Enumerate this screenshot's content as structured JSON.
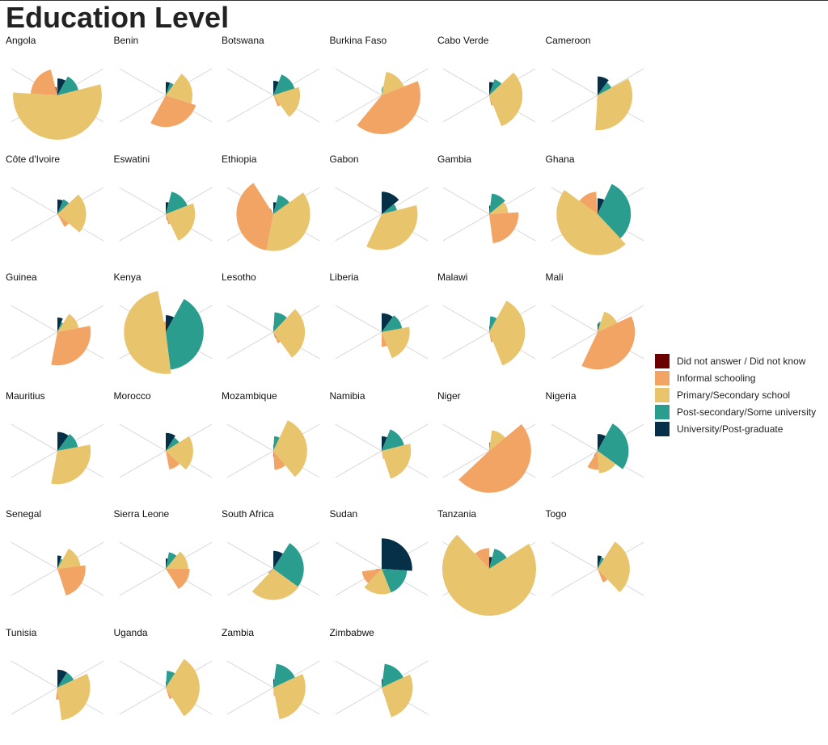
{
  "chart_data": {
    "type": "pie",
    "title": "Education Level",
    "categories": [
      "Did not answer / Did not know",
      "Informal schooling",
      "Primary/Secondary school",
      "Post-secondary/Some university",
      "University/Post-graduate"
    ],
    "colors": [
      "#6b0000",
      "#f2a465",
      "#e8c56d",
      "#2a9d8f",
      "#063047"
    ],
    "legend_position": "right",
    "panels": [
      {
        "country": "Angola",
        "values": [
          0.02,
          0.2,
          0.55,
          0.13,
          0.08
        ]
      },
      {
        "country": "Benin",
        "values": [
          0.0,
          0.28,
          0.2,
          0.05,
          0.05
        ]
      },
      {
        "country": "Botswana",
        "values": [
          0.0,
          0.04,
          0.2,
          0.14,
          0.06
        ]
      },
      {
        "country": "Burkina Faso",
        "values": [
          0.0,
          0.42,
          0.16,
          0.02,
          0.01
        ]
      },
      {
        "country": "Cabo Verde",
        "values": [
          0.0,
          0.03,
          0.31,
          0.08,
          0.05
        ]
      },
      {
        "country": "Cameroon",
        "values": [
          0.0,
          0.01,
          0.34,
          0.07,
          0.1
        ]
      },
      {
        "country": "Côte d'Ivoire",
        "values": [
          0.0,
          0.06,
          0.23,
          0.07,
          0.06
        ]
      },
      {
        "country": "Eswatini",
        "values": [
          0.01,
          0.03,
          0.24,
          0.15,
          0.04
        ]
      },
      {
        "country": "Ethiopia",
        "values": [
          0.01,
          0.38,
          0.38,
          0.11,
          0.04
        ]
      },
      {
        "country": "Gabon",
        "values": [
          0.0,
          0.0,
          0.36,
          0.07,
          0.14
        ]
      },
      {
        "country": "Gambia",
        "values": [
          0.0,
          0.24,
          0.1,
          0.12,
          0.02
        ]
      },
      {
        "country": "Ghana",
        "values": [
          0.0,
          0.14,
          0.47,
          0.31,
          0.07
        ]
      },
      {
        "country": "Guinea",
        "values": [
          0.0,
          0.31,
          0.13,
          0.03,
          0.06
        ]
      },
      {
        "country": "Kenya",
        "values": [
          0.0,
          0.03,
          0.49,
          0.4,
          0.08
        ]
      },
      {
        "country": "Lesotho",
        "values": [
          0.01,
          0.04,
          0.28,
          0.11,
          0.01
        ]
      },
      {
        "country": "Liberia",
        "values": [
          0.0,
          0.06,
          0.22,
          0.12,
          0.1
        ]
      },
      {
        "country": "Malawi",
        "values": [
          0.0,
          0.03,
          0.36,
          0.07,
          0.01
        ]
      },
      {
        "country": "Mali",
        "values": [
          0.0,
          0.39,
          0.13,
          0.03,
          0.02
        ]
      },
      {
        "country": "Mauritius",
        "values": [
          0.0,
          0.01,
          0.31,
          0.12,
          0.1
        ]
      },
      {
        "country": "Morocco",
        "values": [
          0.0,
          0.1,
          0.21,
          0.07,
          0.09
        ]
      },
      {
        "country": "Mozambique",
        "values": [
          0.01,
          0.1,
          0.32,
          0.06,
          0.01
        ]
      },
      {
        "country": "Namibia",
        "values": [
          0.0,
          0.02,
          0.24,
          0.15,
          0.06
        ]
      },
      {
        "country": "Niger",
        "values": [
          0.0,
          0.49,
          0.12,
          0.02,
          0.0
        ]
      },
      {
        "country": "Nigeria",
        "values": [
          0.01,
          0.1,
          0.14,
          0.27,
          0.08
        ]
      },
      {
        "country": "Senegal",
        "values": [
          0.0,
          0.22,
          0.15,
          0.03,
          0.05
        ]
      },
      {
        "country": "Sierra Leone",
        "values": [
          0.0,
          0.16,
          0.14,
          0.08,
          0.03
        ]
      },
      {
        "country": "South Africa",
        "values": [
          0.01,
          0.01,
          0.27,
          0.26,
          0.09
        ]
      },
      {
        "country": "Sudan",
        "values": [
          0.01,
          0.11,
          0.18,
          0.18,
          0.26
        ]
      },
      {
        "country": "Tanzania",
        "values": [
          0.0,
          0.12,
          0.72,
          0.12,
          0.04
        ]
      },
      {
        "country": "Togo",
        "values": [
          0.0,
          0.06,
          0.29,
          0.04,
          0.05
        ]
      },
      {
        "country": "Tunisia",
        "values": [
          0.0,
          0.04,
          0.3,
          0.09,
          0.09
        ]
      },
      {
        "country": "Uganda",
        "values": [
          0.0,
          0.04,
          0.32,
          0.08,
          0.01
        ]
      },
      {
        "country": "Zambia",
        "values": [
          0.0,
          0.02,
          0.29,
          0.16,
          0.02
        ]
      },
      {
        "country": "Zimbabwe",
        "values": [
          0.0,
          0.01,
          0.27,
          0.16,
          0.02
        ]
      }
    ]
  }
}
